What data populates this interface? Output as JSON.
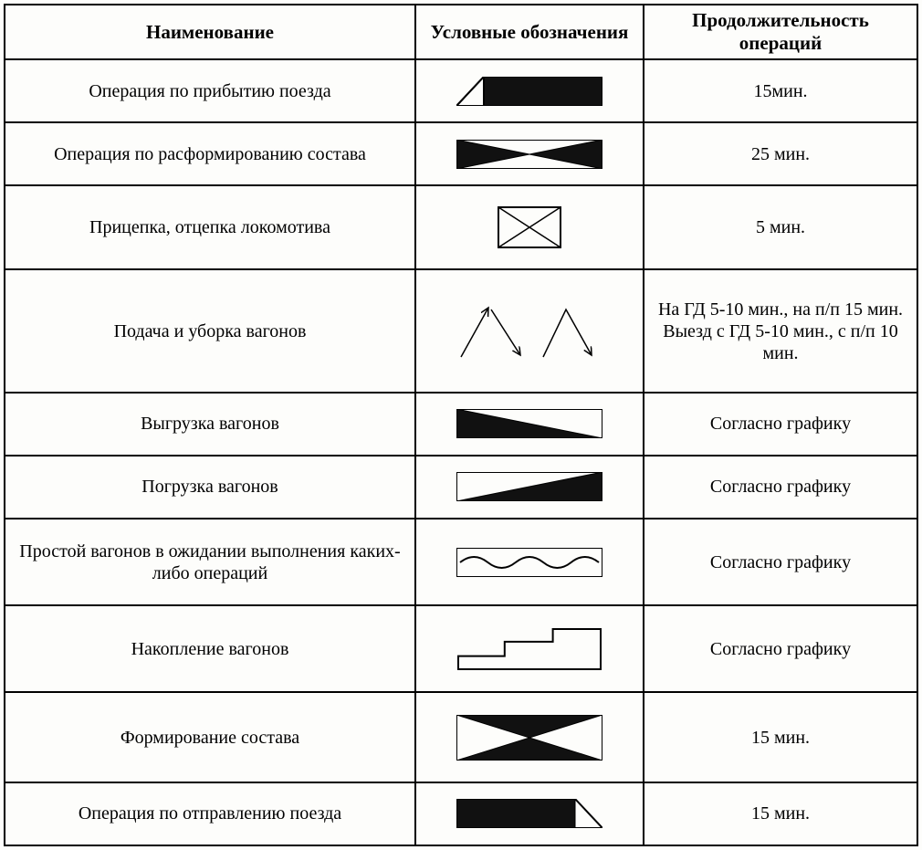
{
  "headers": {
    "name": "Наименование",
    "symbol": "Условные обозначения",
    "duration": "Продолжительность операций"
  },
  "rows": [
    {
      "name": "Операция по прибытию поезда",
      "duration": "15мин.",
      "symbol": "arrival"
    },
    {
      "name": "Операция по расформированию состава",
      "duration": "25 мин.",
      "symbol": "bowtie-thin"
    },
    {
      "name": "Прицепка, отцепка локомотива",
      "duration": "5 мин.",
      "symbol": "box-x"
    },
    {
      "name": "Подача и уборка вагонов",
      "duration": "На ГД 5-10 мин., на п/п 15 мин. Выезд с ГД 5-10 мин., с п/п 10 мин.",
      "symbol": "arrows-zigzag"
    },
    {
      "name": "Выгрузка вагонов",
      "duration": "Согласно графику",
      "symbol": "tri-top-left"
    },
    {
      "name": "Погрузка вагонов",
      "duration": "Согласно графику",
      "symbol": "tri-bot-right"
    },
    {
      "name": "Простой вагонов в ожидании выполнения каких-либо операций",
      "duration": "Согласно графику",
      "symbol": "wave"
    },
    {
      "name": "Накопление вагонов",
      "duration": "Согласно графику",
      "symbol": "steps"
    },
    {
      "name": "Формирование состава",
      "duration": "15 мин.",
      "symbol": "bowtie-thick"
    },
    {
      "name": "Операция по отправлению поезда",
      "duration": "15 мин.",
      "symbol": "departure"
    }
  ],
  "style": {
    "symbol_width": 160,
    "symbol_height": 40,
    "thin_symbol_height": 32,
    "stroke": "#000000",
    "fill": "#111111",
    "bg": "#fdfdfb",
    "font_family": "Times New Roman",
    "header_fontsize": 21,
    "cell_fontsize": 20,
    "border_color": "#000000",
    "border_width": 2
  }
}
